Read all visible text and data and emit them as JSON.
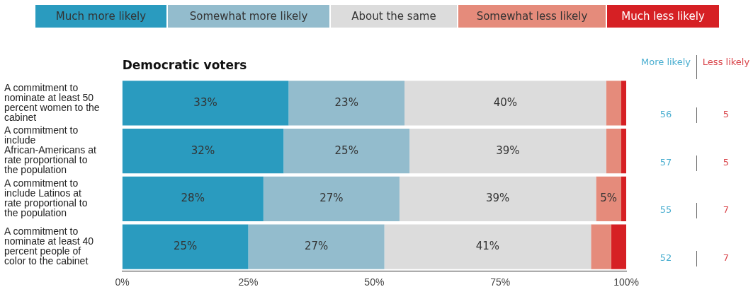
{
  "chart_data": {
    "type": "bar",
    "orientation": "horizontal",
    "stacked": true,
    "title": "Democratic voters",
    "legend": "top",
    "categories": [
      "A commitment to nominate at least 50 percent women to the cabinet",
      "A commitment to include African-Americans at rate proportional to the population",
      "A commitment to include Latinos at rate proportional to the population",
      "A commitment to nominate at least 40 percent people of color to the cabinet"
    ],
    "series": [
      {
        "name": "Much more likely",
        "color": "#2a9bbf",
        "values": [
          33,
          32,
          28,
          25
        ],
        "value_labels": [
          "33%",
          "32%",
          "28%",
          "25%"
        ]
      },
      {
        "name": "Somewhat more likely",
        "color": "#93bccd",
        "values": [
          23,
          25,
          27,
          27
        ],
        "value_labels": [
          "23%",
          "25%",
          "27%",
          "27%"
        ]
      },
      {
        "name": "About the same",
        "color": "#dcdcdc",
        "values": [
          40,
          39,
          39,
          41
        ],
        "value_labels": [
          "40%",
          "39%",
          "39%",
          "41%"
        ]
      },
      {
        "name": "Somewhat less likely",
        "color": "#e58b7b",
        "values": [
          3,
          3,
          5,
          4
        ],
        "value_labels": [
          null,
          null,
          "5%",
          null
        ]
      },
      {
        "name": "Much less likely",
        "color": "#d62024",
        "values": [
          1,
          1,
          1,
          3
        ]
      }
    ],
    "xlim": [
      0,
      100
    ],
    "xticks": [
      {
        "value": 0,
        "label": "0%"
      },
      {
        "value": 25,
        "label": "25%"
      },
      {
        "value": 50,
        "label": "50%"
      },
      {
        "value": 75,
        "label": "75%"
      },
      {
        "value": 100,
        "label": "100%"
      }
    ],
    "grid": false,
    "annotations": [
      "More likely",
      "Less likely",
      "56",
      "5",
      "57",
      "5",
      "55",
      "7",
      "52",
      "7"
    ]
  }
}
